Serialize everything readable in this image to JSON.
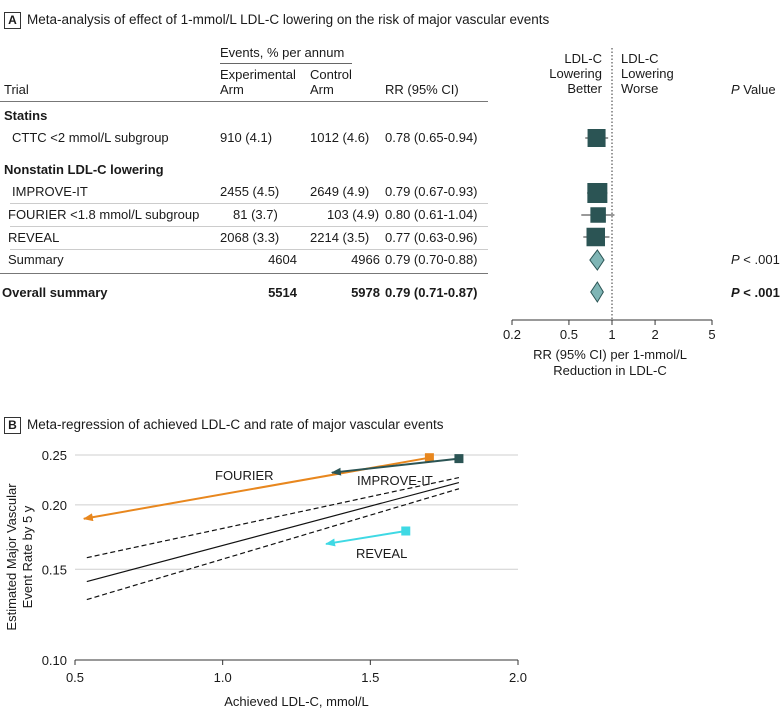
{
  "panel_a": {
    "letter": "A",
    "title": "Meta-analysis of effect of 1-mmol/L LDL-C lowering on the risk of major vascular events",
    "header": {
      "events_group": "Events, % per annum",
      "trial": "Trial",
      "exp_line1": "Experimental",
      "exp_line2": "Arm",
      "ctl_line1": "Control",
      "ctl_line2": "Arm",
      "rr": "RR (95% CI)",
      "favor_left_1": "LDL-C",
      "favor_left_2": "Lowering",
      "favor_left_3": "Better",
      "favor_right_1": "LDL-C",
      "favor_right_2": "Lowering",
      "favor_right_3": "Worse",
      "p_italic": "P",
      "p_rest": " Value"
    },
    "rows": [
      {
        "label": "Statins",
        "heading": true
      },
      {
        "label": "CTTC <2 mmol/L subgroup",
        "exp": "910 (4.1)",
        "ctl": "1012 (4.6)",
        "rr": "0.78 (0.65-0.94)"
      },
      {
        "label": "Nonstatin LDL-C lowering",
        "heading": true
      },
      {
        "label": "IMPROVE-IT",
        "exp": "2455 (4.5)",
        "ctl": "2649 (4.9)",
        "rr": "0.79 (0.67-0.93)"
      },
      {
        "label": "FOURIER <1.8 mmol/L subgroup",
        "exp": "81 (3.7)",
        "ctl": "103 (4.9)",
        "rr": "0.80 (0.61-1.04)"
      },
      {
        "label": "REVEAL",
        "exp": "2068 (3.3)",
        "ctl": "2214 (3.5)",
        "rr": "0.77 (0.63-0.96)"
      },
      {
        "label": "Summary",
        "exp": "4604",
        "ctl": "4966",
        "rr": "0.79 (0.70-0.88)",
        "p": "< .001"
      },
      {
        "label": "Overall summary",
        "exp": "5514",
        "ctl": "5978",
        "rr": "0.79 (0.71-0.87)",
        "p": "< .001",
        "bold": true
      }
    ],
    "p_symbol": "P",
    "xlabel_1": "RR (95% CI) per 1-mmol/L",
    "xlabel_2": "Reduction in LDL-C"
  },
  "panel_b": {
    "letter": "B",
    "title": "Meta-regression of achieved LDL-C and rate of major vascular events"
  },
  "colors": {
    "square": "#2b5454",
    "diamond": "#7fb5b5",
    "fourier": "#e8871e",
    "improve": "#2b5454",
    "reveal": "#3fd9e4"
  },
  "chart_data": [
    {
      "type": "forest",
      "scale": "log",
      "xticks": [
        0.2,
        0.5,
        1,
        2,
        5
      ],
      "xlim": [
        0.2,
        5
      ],
      "null_line": 1,
      "estimates": [
        {
          "row": 1,
          "rr": 0.78,
          "lo": 0.65,
          "hi": 0.94,
          "shape": "square",
          "weight": 0.8
        },
        {
          "row": 3,
          "rr": 0.79,
          "lo": 0.67,
          "hi": 0.93,
          "shape": "square",
          "weight": 1.0
        },
        {
          "row": 4,
          "rr": 0.8,
          "lo": 0.61,
          "hi": 1.04,
          "shape": "square",
          "weight": 0.55
        },
        {
          "row": 5,
          "rr": 0.77,
          "lo": 0.63,
          "hi": 0.96,
          "shape": "square",
          "weight": 0.85
        },
        {
          "row": 6,
          "rr": 0.79,
          "lo": 0.7,
          "hi": 0.88,
          "shape": "diamond"
        },
        {
          "row": 7,
          "rr": 0.79,
          "lo": 0.71,
          "hi": 0.87,
          "shape": "diamond"
        }
      ]
    },
    {
      "type": "line",
      "xlabel": "Achieved LDL-C, mmol/L",
      "ylabel_1": "Estimated Major Vascular",
      "ylabel_2": "Event Rate by 5 y",
      "xlim": [
        0.5,
        2.0
      ],
      "ylim": [
        0.1,
        0.25
      ],
      "yscale": "log",
      "xticks": [
        0.5,
        1.0,
        1.5,
        2.0
      ],
      "xtick_labels": [
        "0.5",
        "1.0",
        "1.5",
        "2.0"
      ],
      "yticks": [
        0.1,
        0.15,
        0.2,
        0.25
      ],
      "ytick_labels": [
        "0.10",
        "0.15",
        "0.20",
        "0.25"
      ],
      "regression": {
        "x": [
          0.54,
          1.8
        ],
        "y": [
          0.142,
          0.221
        ]
      },
      "ci_upper": {
        "x": [
          0.54,
          1.8
        ],
        "y": [
          0.158,
          0.226
        ]
      },
      "ci_lower": {
        "x": [
          0.54,
          1.8
        ],
        "y": [
          0.131,
          0.215
        ]
      },
      "trials": [
        {
          "name": "FOURIER",
          "from": {
            "x": 1.7,
            "y": 0.247
          },
          "to": {
            "x": 0.53,
            "y": 0.188
          }
        },
        {
          "name": "IMPROVE-IT",
          "from": {
            "x": 1.8,
            "y": 0.246
          },
          "to": {
            "x": 1.37,
            "y": 0.231
          }
        },
        {
          "name": "REVEAL",
          "from": {
            "x": 1.62,
            "y": 0.178
          },
          "to": {
            "x": 1.35,
            "y": 0.168
          }
        }
      ]
    }
  ]
}
